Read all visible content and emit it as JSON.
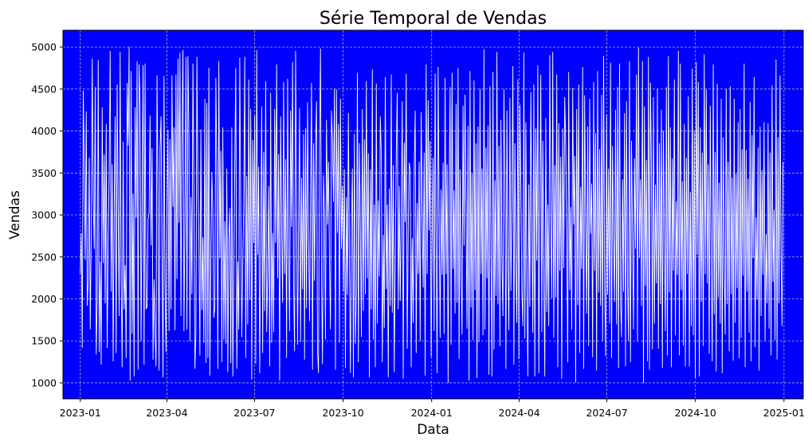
{
  "chart_data": {
    "type": "line",
    "title": "Série Temporal de Vendas",
    "xlabel": "Data",
    "ylabel": "Vendas",
    "x_range": [
      "2022-12-14",
      "2025-01-21"
    ],
    "y_range": [
      810,
      5200
    ],
    "x_ticks": [
      "2023-01",
      "2023-04",
      "2023-07",
      "2023-10",
      "2024-01",
      "2024-04",
      "2024-07",
      "2024-10",
      "2025-01"
    ],
    "y_ticks": [
      1000,
      1500,
      2000,
      2500,
      3000,
      3500,
      4000,
      4500,
      5000
    ],
    "grid": true,
    "grid_style": "dashed",
    "series": [
      {
        "name": "",
        "color": "#ffffff",
        "x_start": "2023-01-01",
        "x_end": "2024-12-31",
        "frequency": "daily",
        "values": [
          2300,
          2780,
          1420,
          4480,
          3550,
          2470,
          4230,
          1920,
          2230,
          3680,
          1640,
          2760,
          4860,
          3200,
          2600,
          4520,
          1340,
          2000,
          4840,
          1370,
          2440,
          1220,
          4280,
          2430,
          3720,
          1950,
          4080,
          1420,
          2680,
          3520,
          4950,
          2090,
          3600,
          1260,
          3060,
          4170,
          1360,
          4550,
          3090,
          1800,
          4940,
          2260,
          1190,
          3870,
          1880,
          2400,
          1300,
          4570,
          3830,
          5000,
          1030,
          4710,
          1590,
          3250,
          1080,
          4280,
          2970,
          4830,
          1160,
          4790,
          4290,
          1500,
          3100,
          4780,
          1220,
          4800,
          1880,
          1910,
          2950,
          3020,
          4180,
          2640,
          3790,
          1280,
          2230,
          1580,
          1200,
          4660,
          3270,
          1150,
          3780,
          4170,
          2530,
          1070,
          4650,
          2210,
          1370,
          3070,
          4010,
          1620,
          3900,
          1880,
          4660,
          3100,
          4040,
          1630,
          4670,
          2240,
          4860,
          2910,
          4930,
          1800,
          3870,
          4960,
          1620,
          2960,
          4880,
          1640,
          4890,
          3950,
          1500,
          3210,
          2060,
          4800,
          3300,
          1170,
          1590,
          4880,
          3390,
          2730,
          1330,
          4020,
          1870,
          2730,
          1480,
          4380,
          1240,
          4330,
          1300,
          4750,
          1090,
          2480,
          3510,
          3020,
          1780,
          1900,
          4630,
          3530,
          1170,
          4830,
          2490,
          3760,
          1250,
          4040,
          1520,
          2920,
          1470,
          3550,
          1130,
          2690,
          3080,
          1240,
          4040,
          1080,
          2370,
          3590,
          4750,
          1170,
          2440,
          1640,
          4870,
          3010,
          1550,
          2420,
          3150,
          4880,
          1300,
          3460,
          1700,
          4610,
          1990,
          4260,
          1040,
          3890,
          2670,
          4180,
          1230,
          4960,
          2530,
          3570,
          1120,
          2570,
          4290,
          1360,
          3750,
          1860,
          4590,
          1610,
          2290,
          3340,
          1200,
          4450,
          1480,
          2780,
          1610,
          4260,
          2670,
          4790,
          2250,
          3720,
          1030,
          4170,
          2820,
          1960,
          4580,
          2300,
          3660,
          1300,
          4620,
          2570,
          1620,
          4240,
          2860,
          4820,
          2180,
          1380,
          4950,
          3080,
          1460,
          2850,
          4270,
          1490,
          3440,
          2120,
          3960,
          1280,
          4030,
          1890,
          4340,
          2750,
          1740,
          3180,
          4570,
          1160,
          3850,
          2220,
          3790,
          4350,
          1380,
          1120,
          3770,
          4980,
          2280,
          1230,
          3470,
          2980,
          1520,
          4130,
          2890,
          3630,
          2490,
          1640,
          4240,
          3880,
          3160,
          4500,
          1160,
          4490,
          2790,
          4080,
          1480,
          4380,
          2600,
          3340,
          2090,
          3540,
          1180,
          3210,
          2050,
          4210,
          2450,
          1120,
          2840,
          3550,
          1070,
          3960,
          1470,
          2080,
          4690,
          1250,
          3850,
          2840,
          1550,
          4260,
          1860,
          3900,
          2060,
          4590,
          2250,
          3730,
          1070,
          3540,
          1880,
          4730,
          1520,
          3120,
          1190,
          4560,
          1710,
          3170,
          2270,
          4170,
          3720,
          1250,
          2760,
          1660,
          4640,
          2120,
          3120,
          1070,
          3310,
          1920,
          4670,
          1840,
          3590,
          1130,
          2460,
          3730,
          4450,
          1880,
          3340,
          1980,
          3040,
          4350,
          1050,
          3860,
          2920,
          4680,
          1410,
          2820,
          3620,
          3550,
          1190,
          2720,
          1720,
          3530,
          4240,
          1360,
          3140,
          2300,
          3630,
          1500,
          4220,
          3010,
          2140,
          3740,
          1090,
          4790,
          2300,
          4360,
          2820,
          3880,
          1310,
          2720,
          3680,
          1620,
          4680,
          2600,
          1120,
          4760,
          3040,
          1540,
          3300,
          2290,
          3620,
          1590,
          4630,
          2300,
          3600,
          1000,
          3270,
          4520,
          1460,
          4690,
          2360,
          3290,
          1830,
          4320,
          1960,
          4750,
          1290,
          3540,
          2310,
          1580,
          4300,
          2640,
          4430,
          3060,
          1650,
          4060,
          1030,
          4710,
          1900,
          3500,
          1510,
          4600,
          2110,
          3850,
          1060,
          4050,
          1490,
          4500,
          2300,
          3550,
          1570,
          4970,
          1640,
          3800,
          2250,
          4060,
          1100,
          4530,
          2640,
          1080,
          4700,
          1400,
          3410,
          2040,
          4940,
          1940,
          3820,
          1440,
          4130,
          2480,
          1800,
          4490,
          3370,
          1170,
          4240,
          2490,
          1630,
          4390,
          2100,
          3130,
          4770,
          1220,
          3850,
          2400,
          1720,
          4610,
          1290,
          4310,
          3360,
          2110,
          1680,
          4930,
          1530,
          4100,
          2180,
          1080,
          3360,
          1910,
          4460,
          2960,
          1600,
          4550,
          1080,
          4030,
          2460,
          4780,
          1120,
          3060,
          4670,
          1610,
          3880,
          2360,
          1080,
          4150,
          1850,
          3120,
          1680,
          4900,
          3000,
          2010,
          4940,
          1540,
          3590,
          2020,
          4670,
          1190,
          4090,
          2340,
          3690,
          1050,
          4030,
          2370,
          4400,
          3840,
          2810,
          1250,
          4700,
          2110,
          3090,
          1640,
          4510,
          2890,
          3700,
          1010,
          4260,
          1930,
          4550,
          1360,
          3330,
          2360,
          4760,
          1170,
          4420,
          2940,
          1830,
          4050,
          1440,
          4380,
          2780,
          3370,
          1310,
          4580,
          2340,
          3970,
          1150,
          4710,
          2080,
          3780,
          1920,
          4430,
          1500,
          4890,
          2260,
          1320,
          4190,
          2060,
          3550,
          1710,
          4810,
          1300,
          3820,
          2750,
          1970,
          4250,
          1700,
          4520,
          1180,
          4800,
          2000,
          1550,
          3420,
          2090,
          4210,
          1200,
          4350,
          2210,
          1500,
          4830,
          1250,
          3880,
          2800,
          1640,
          3670,
          2600,
          4670,
          1500,
          4990,
          2490,
          3420,
          1920,
          4830,
          1000,
          4290,
          2160,
          3650,
          1260,
          4880,
          1160,
          4570,
          3560,
          1400,
          4400,
          1710,
          3360,
          2190,
          4500,
          1410,
          3850,
          1940,
          4250,
          1180,
          4000,
          2750,
          1620,
          4520,
          1330,
          4890,
          2080,
          4040,
          1190,
          3670,
          2340,
          4610,
          1570,
          3160,
          2290,
          4950,
          1330,
          4800,
          2110,
          3400,
          1450,
          4080,
          1200,
          3680,
          2300,
          4410,
          1200,
          3270,
          1680,
          4740,
          1570,
          3990,
          1060,
          4820,
          2530,
          4580,
          1080,
          4040,
          1970,
          3740,
          1440,
          4910,
          2300,
          4490,
          2190,
          3600,
          1350,
          4300,
          2450,
          1260,
          4790,
          1820,
          3750,
          1140,
          4560,
          2020,
          3380,
          1710,
          4380,
          1120,
          3920,
          2490,
          1580,
          4500,
          1940,
          3630,
          1380,
          4530,
          2060,
          3440,
          1270,
          4380,
          1720,
          3490,
          2130,
          4100,
          1300,
          4260,
          1540,
          3780,
          2280,
          4800,
          1190,
          3770,
          2090,
          3430,
          1600,
          4340,
          1260,
          3950,
          2490,
          4640,
          1430,
          2970,
          2000,
          3800,
          1150,
          4050,
          1800,
          3530,
          2290,
          4100,
          1500,
          2770,
          1950,
          4090,
          1650,
          3740,
          1330,
          4540,
          2210,
          3060,
          1510,
          4850,
          1280,
          3920,
          1950,
          4660,
          2550,
          1680,
          3630
        ]
      }
    ]
  }
}
